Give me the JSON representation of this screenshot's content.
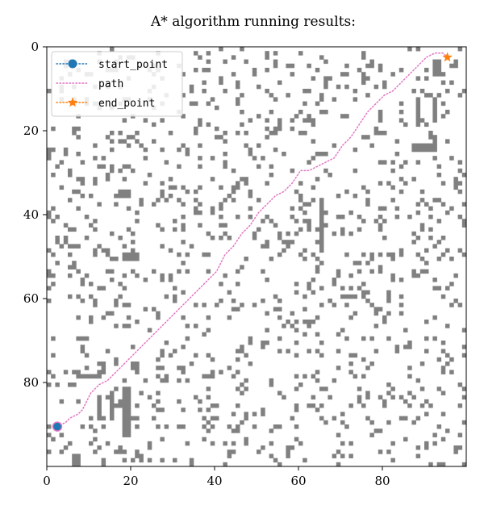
{
  "chart_data": {
    "type": "heatmap",
    "title": "A* algorithm running results:",
    "xlabel": "",
    "ylabel": "",
    "grid_size": [
      100,
      100
    ],
    "xlim": [
      0,
      100
    ],
    "ylim": [
      100,
      0
    ],
    "x_ticks": [
      0,
      20,
      40,
      60,
      80
    ],
    "y_ticks": [
      0,
      20,
      40,
      60,
      80
    ],
    "grid": false,
    "legend_position": "upper-left",
    "obstacle_color": "#808080",
    "free_color": "#ffffff",
    "obstacle_density": 0.12,
    "obstacles": [
      [
        17,
        34
      ],
      [
        18,
        34
      ],
      [
        19,
        34
      ],
      [
        17,
        35
      ],
      [
        18,
        35
      ],
      [
        19,
        35
      ],
      [
        22,
        36
      ],
      [
        18,
        49
      ],
      [
        19,
        49
      ],
      [
        20,
        49
      ],
      [
        21,
        49
      ],
      [
        18,
        50
      ],
      [
        19,
        50
      ],
      [
        20,
        50
      ],
      [
        21,
        50
      ],
      [
        7,
        78
      ],
      [
        8,
        78
      ],
      [
        9,
        78
      ],
      [
        10,
        78
      ],
      [
        11,
        78
      ],
      [
        12,
        78
      ],
      [
        13,
        78
      ],
      [
        14,
        79
      ],
      [
        9,
        81
      ],
      [
        10,
        81
      ],
      [
        9,
        82
      ],
      [
        10,
        82
      ],
      [
        12,
        83
      ],
      [
        12,
        84
      ],
      [
        12,
        85
      ],
      [
        12,
        86
      ],
      [
        12,
        87
      ],
      [
        12,
        88
      ],
      [
        13,
        80
      ],
      [
        14,
        80
      ],
      [
        16,
        74
      ],
      [
        16,
        75
      ],
      [
        16,
        76
      ],
      [
        16,
        77
      ],
      [
        19,
        72
      ],
      [
        20,
        72
      ],
      [
        21,
        72
      ],
      [
        19,
        73
      ],
      [
        20,
        73
      ],
      [
        21,
        73
      ],
      [
        19,
        74
      ],
      [
        20,
        74
      ],
      [
        21,
        74
      ],
      [
        19,
        75
      ],
      [
        20,
        75
      ],
      [
        21,
        75
      ],
      [
        19,
        76
      ],
      [
        20,
        76
      ],
      [
        21,
        76
      ],
      [
        15,
        82
      ],
      [
        15,
        83
      ],
      [
        15,
        84
      ],
      [
        15,
        85
      ],
      [
        15,
        86
      ],
      [
        15,
        87
      ],
      [
        15,
        88
      ],
      [
        18,
        81
      ],
      [
        19,
        81
      ],
      [
        18,
        82
      ],
      [
        19,
        82
      ],
      [
        18,
        83
      ],
      [
        19,
        83
      ],
      [
        18,
        84
      ],
      [
        19,
        84
      ],
      [
        18,
        85
      ],
      [
        19,
        85
      ],
      [
        18,
        86
      ],
      [
        19,
        86
      ],
      [
        18,
        87
      ],
      [
        19,
        87
      ],
      [
        18,
        88
      ],
      [
        19,
        88
      ],
      [
        18,
        89
      ],
      [
        19,
        89
      ],
      [
        18,
        90
      ],
      [
        19,
        90
      ],
      [
        18,
        91
      ],
      [
        19,
        91
      ],
      [
        18,
        92
      ],
      [
        19,
        92
      ],
      [
        6,
        97
      ],
      [
        7,
        97
      ],
      [
        6,
        98
      ],
      [
        7,
        98
      ],
      [
        6,
        99
      ],
      [
        7,
        99
      ],
      [
        65,
        36
      ],
      [
        65,
        37
      ],
      [
        65,
        38
      ],
      [
        65,
        39
      ],
      [
        65,
        40
      ],
      [
        65,
        41
      ],
      [
        65,
        42
      ],
      [
        65,
        43
      ],
      [
        65,
        44
      ],
      [
        65,
        45
      ],
      [
        65,
        46
      ],
      [
        65,
        47
      ],
      [
        62,
        41
      ],
      [
        62,
        42
      ],
      [
        62,
        43
      ],
      [
        56,
        46
      ],
      [
        57,
        46
      ],
      [
        58,
        46
      ],
      [
        92,
        2
      ],
      [
        93,
        2
      ],
      [
        92,
        3
      ],
      [
        93,
        3
      ],
      [
        92,
        4
      ],
      [
        93,
        4
      ],
      [
        92,
        5
      ],
      [
        93,
        5
      ],
      [
        92,
        6
      ],
      [
        93,
        6
      ],
      [
        88,
        12
      ],
      [
        88,
        13
      ],
      [
        88,
        14
      ],
      [
        88,
        15
      ],
      [
        88,
        16
      ],
      [
        88,
        17
      ],
      [
        88,
        18
      ],
      [
        79,
        13
      ],
      [
        79,
        14
      ],
      [
        79,
        15
      ],
      [
        79,
        16
      ],
      [
        79,
        17
      ],
      [
        87,
        23
      ],
      [
        88,
        23
      ],
      [
        89,
        23
      ],
      [
        90,
        23
      ],
      [
        91,
        23
      ],
      [
        92,
        23
      ],
      [
        87,
        24
      ],
      [
        88,
        24
      ],
      [
        89,
        24
      ],
      [
        90,
        24
      ],
      [
        91,
        24
      ],
      [
        92,
        24
      ],
      [
        92,
        12
      ],
      [
        92,
        13
      ],
      [
        92,
        14
      ],
      [
        92,
        15
      ],
      [
        92,
        16
      ],
      [
        92,
        17
      ]
    ],
    "series": [
      {
        "name": "start_point",
        "marker": "circle",
        "color": "#1f77b4",
        "x": [
          2
        ],
        "y": [
          90
        ]
      },
      {
        "name": "path",
        "marker": "dotted-line",
        "color": "#e377c2",
        "x": [
          2,
          4,
          5,
          7,
          8,
          9,
          10,
          12,
          14,
          16,
          18,
          20,
          22,
          24,
          26,
          28,
          30,
          32,
          34,
          36,
          38,
          40,
          41,
          42,
          44,
          46,
          48,
          50,
          52,
          54,
          56,
          58,
          60,
          62,
          64,
          66,
          68,
          70,
          72,
          74,
          76,
          78,
          80,
          82,
          84,
          86,
          88,
          90,
          92,
          94,
          95
        ],
        "y": [
          90,
          89,
          88,
          87,
          86,
          84,
          82,
          80,
          79,
          77,
          75,
          73,
          71,
          69,
          67,
          65,
          63,
          61,
          59,
          57,
          55,
          53,
          51,
          49,
          47,
          44,
          42,
          39,
          37,
          35,
          34,
          32,
          29,
          29,
          28,
          27,
          26,
          23,
          21,
          18,
          15,
          13,
          11,
          10,
          8,
          6,
          4,
          2,
          1,
          1,
          2
        ]
      },
      {
        "name": "end_point",
        "marker": "star",
        "color": "#ff7f0e",
        "x": [
          95
        ],
        "y": [
          2
        ]
      }
    ]
  }
}
